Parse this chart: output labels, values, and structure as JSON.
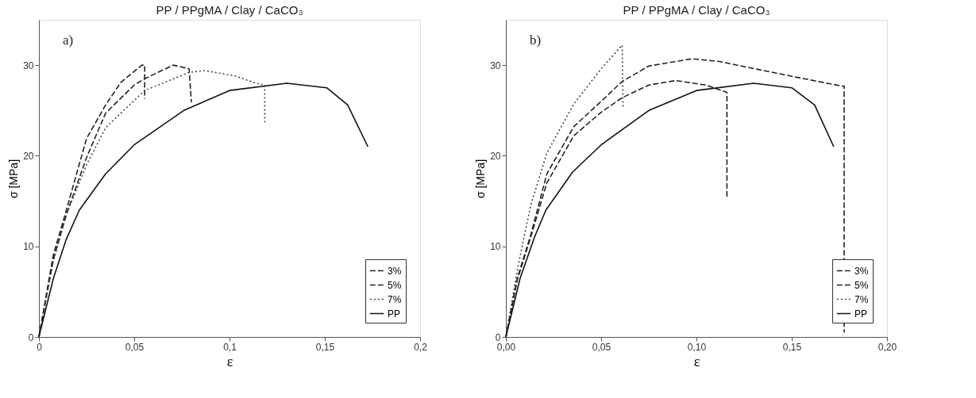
{
  "chart_data": [
    {
      "type": "line",
      "title": "PP / PPgMA / Clay / CaCO₃",
      "xlabel": "ε",
      "ylabel": "σ [MPa]",
      "annotations": [
        "a)"
      ],
      "xlim": [
        0,
        0.2
      ],
      "xticks": [
        {
          "value": 0,
          "label": "0"
        },
        {
          "value": 0.05,
          "label": "0,05"
        },
        {
          "value": 0.1,
          "label": "0,1"
        },
        {
          "value": 0.15,
          "label": "0,15"
        },
        {
          "value": 0.2,
          "label": "0,2"
        }
      ],
      "ylim": [
        0,
        35
      ],
      "yticks": [
        0,
        10,
        20,
        30
      ],
      "grid": false,
      "legend": "bottom right",
      "marker": "none",
      "series": [
        {
          "name": "3%",
          "color": "#222222",
          "line_style": "dashed",
          "x": [
            0,
            0.0075,
            0.0144,
            0.025,
            0.035,
            0.043,
            0.054,
            0.0555,
            0.0555
          ],
          "values": [
            0,
            9,
            14,
            21.9,
            25.6,
            28.1,
            30,
            30,
            26.3
          ]
        },
        {
          "name": "5%",
          "color": "#222222",
          "line_style": "dashed",
          "x": [
            0,
            0.0075,
            0.0144,
            0.025,
            0.035,
            0.05,
            0.0555,
            0.0705,
            0.0788,
            0.08
          ],
          "values": [
            0,
            8.5,
            13.5,
            19.8,
            24.7,
            27.8,
            28.5,
            30,
            29.6,
            25.9
          ]
        },
        {
          "name": "7%",
          "color": "#444444",
          "line_style": "dotted",
          "x": [
            0,
            0.0075,
            0.0144,
            0.025,
            0.035,
            0.0555,
            0.079,
            0.087,
            0.103,
            0.114,
            0.1185,
            0.1185
          ],
          "values": [
            0,
            8.3,
            13.5,
            19,
            23.1,
            27.2,
            29.2,
            29.4,
            28.8,
            28,
            27.8,
            23.7
          ]
        },
        {
          "name": "PP",
          "color": "#111111",
          "line_style": "solid",
          "x": [
            0,
            0.0075,
            0.0144,
            0.0212,
            0.035,
            0.05,
            0.076,
            0.1,
            0.13,
            0.151,
            0.162,
            0.1726
          ],
          "values": [
            0,
            6.4,
            10.8,
            14,
            18,
            21.2,
            25,
            27.2,
            28,
            27.5,
            25.6,
            21
          ]
        }
      ]
    },
    {
      "type": "line",
      "title": "PP / PPgMA / Clay / CaCO₃",
      "xlabel": "ε",
      "ylabel": "σ [MPa]",
      "annotations": [
        "b)"
      ],
      "xlim": [
        0,
        0.2
      ],
      "xticks": [
        {
          "value": 0,
          "label": "0,00"
        },
        {
          "value": 0.05,
          "label": "0,05"
        },
        {
          "value": 0.1,
          "label": "0,10"
        },
        {
          "value": 0.15,
          "label": "0,15"
        },
        {
          "value": 0.2,
          "label": "0,20"
        }
      ],
      "ylim": [
        0,
        35
      ],
      "yticks": [
        0,
        10,
        20,
        30
      ],
      "grid": false,
      "legend": "bottom right",
      "marker": "none",
      "series": [
        {
          "name": "3%",
          "color": "#222222",
          "line_style": "dashed",
          "x": [
            0,
            0.006,
            0.013,
            0.0215,
            0.0356,
            0.05,
            0.061,
            0.075,
            0.0977,
            0.112,
            0.133,
            0.154,
            0.176,
            0.1775,
            0.1775
          ],
          "values": [
            0,
            6.5,
            11.2,
            18,
            23.2,
            26,
            28.2,
            29.9,
            30.7,
            30.4,
            29.5,
            28.6,
            27.7,
            27.7,
            0.5
          ]
        },
        {
          "name": "5%",
          "color": "#222222",
          "line_style": "dashed",
          "x": [
            0,
            0.006,
            0.013,
            0.0215,
            0.0356,
            0.05,
            0.061,
            0.075,
            0.089,
            0.105,
            0.116,
            0.116
          ],
          "values": [
            0,
            6.3,
            11,
            17,
            22.2,
            24.8,
            26.4,
            27.8,
            28.3,
            27.8,
            27,
            15.4
          ]
        },
        {
          "name": "7%",
          "color": "#444444",
          "line_style": "dotted",
          "x": [
            0,
            0.006,
            0.013,
            0.0215,
            0.0356,
            0.05,
            0.061,
            0.0615
          ],
          "values": [
            0,
            7.4,
            14.5,
            20.3,
            25.7,
            29.6,
            32.2,
            25.4
          ]
        },
        {
          "name": "PP",
          "color": "#111111",
          "line_style": "solid",
          "x": [
            0,
            0.0075,
            0.015,
            0.021,
            0.035,
            0.05,
            0.075,
            0.1,
            0.13,
            0.15,
            0.162,
            0.172
          ],
          "values": [
            0,
            6.5,
            11,
            14,
            18.2,
            21.2,
            25,
            27.2,
            28,
            27.5,
            25.6,
            21
          ]
        }
      ]
    }
  ]
}
